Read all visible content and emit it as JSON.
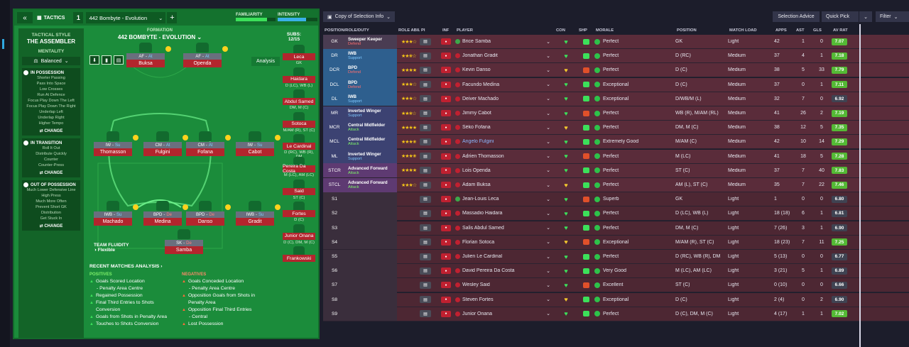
{
  "topbar": {
    "back": "«",
    "tactics": "TACTICS",
    "slot": "1",
    "tactic_name": "442 Bombyte - Evolution",
    "add": "+",
    "familiarity_label": "FAMILIARITY",
    "familiarity": 0.78,
    "intensity_label": "INTENSITY",
    "intensity": 0.72
  },
  "style": {
    "heading": "TACTICAL STYLE",
    "name": "THE ASSEMBLER",
    "mentality_label": "MENTALITY",
    "mentality": "Balanced",
    "change": "CHANGE",
    "possession": {
      "title": "IN POSSESSION",
      "items": [
        "Shorter Passing",
        "Pass Into Space",
        "Low Crosses",
        "Run At Defence",
        "Focus Play Down The Left",
        "Focus Play Down The Right",
        "Underlap Left",
        "Underlap Right",
        "Higher Tempo"
      ]
    },
    "transition": {
      "title": "IN TRANSITION",
      "items": [
        "Roll It Out",
        "Distribute Quickly",
        "Counter",
        "Counter-Press"
      ]
    },
    "oop": {
      "title": "OUT OF POSSESSION",
      "items": [
        "Much Lower Defensive Line",
        "High Press",
        "Much More Often",
        "Prevent Short GK",
        "Distribution",
        "Get Stuck In"
      ]
    }
  },
  "formation": {
    "heading": "FORMATION",
    "name": "442 BOMBYTE - EVOLUTION",
    "subs_label": "SUBS:",
    "subs": "12/15",
    "analysis": "Analysis",
    "fluidity_label": "TEAM FLUIDITY",
    "fluidity": "Flexible"
  },
  "pitch": [
    {
      "role": "AF",
      "duty": "At",
      "name": "Buksa"
    },
    {
      "role": "AF",
      "duty": "At",
      "name": "Openda"
    },
    {
      "role": "IW",
      "duty": "Su",
      "name": "Thomasson"
    },
    {
      "role": "CM",
      "duty": "At",
      "name": "Fulgini"
    },
    {
      "role": "CM",
      "duty": "At",
      "name": "Fofana"
    },
    {
      "role": "IW",
      "duty": "Su",
      "name": "Cabot"
    },
    {
      "role": "IWB",
      "duty": "Su",
      "name": "Machado"
    },
    {
      "role": "BPD",
      "duty": "De",
      "name": "Medina"
    },
    {
      "role": "BPD",
      "duty": "De",
      "name": "Danso"
    },
    {
      "role": "IWB",
      "duty": "Su",
      "name": "Gradit"
    },
    {
      "role": "SK",
      "duty": "De",
      "name": "Samba"
    }
  ],
  "subs": [
    {
      "name": "Leca",
      "pos": "GK"
    },
    {
      "name": "Haidara",
      "pos": "D (LC), WB (L)"
    },
    {
      "name": "Abdul Samed",
      "pos": "DM, M (C)"
    },
    {
      "name": "Sotoca",
      "pos": "M/AM (R), ST (C)"
    },
    {
      "name": "Le Cardinal",
      "pos": "D (RC), WB (R), DM"
    },
    {
      "name": "Pereira Da Costa",
      "pos": "M (LC), AM (LC)"
    },
    {
      "name": "Said",
      "pos": "ST (C)"
    },
    {
      "name": "Fortes",
      "pos": "D (C)"
    },
    {
      "name": "Junior Onana",
      "pos": "D (C), DM, M (C)"
    },
    {
      "name": "Frankowski",
      "pos": ""
    }
  ],
  "analysis": {
    "title": "RECENT MATCHES ANALYSIS ›",
    "positives_label": "POSITIVES",
    "negatives_label": "NEGATIVES",
    "positives": [
      {
        "t": "Goals Scored Location",
        "s": "- Penalty Area Centre"
      },
      {
        "t": "Regained Possession",
        "s": ""
      },
      {
        "t": "Final Third Entries to Shots Conversion",
        "s": ""
      },
      {
        "t": "Goals from Shots in Penalty Area",
        "s": ""
      },
      {
        "t": "Touches to Shots Conversion",
        "s": ""
      }
    ],
    "negatives": [
      {
        "t": "Goals Conceded Location",
        "s": "- Penalty Area Centre"
      },
      {
        "t": "Opposition Goals from Shots in Penalty Area",
        "s": ""
      },
      {
        "t": "Opposition Final Third Entries",
        "s": "- Central"
      },
      {
        "t": "Lost Possession",
        "s": ""
      }
    ]
  },
  "right": {
    "copy": "Copy of Selection Info",
    "selection_advice": "Selection Advice",
    "quick_pick": "Quick Pick",
    "filter": "Filter"
  },
  "columns": [
    "POSITION/ROLE/DUTY",
    "ROLE ABILITY",
    "PI",
    "INF",
    "PLAYER",
    "CON",
    "SHP",
    "MORALE",
    "POSITION",
    "MATCH LOAD",
    "APPS",
    "AST",
    "GLS",
    "AV RAT"
  ],
  "rows": [
    {
      "pos": "GK",
      "role": "Sweeper Keeper",
      "duty": "Defend",
      "stars": 3,
      "player": "Brice Samba",
      "morale": "Perfect",
      "position": "GK",
      "load": "Light",
      "apps": "42",
      "ast": "1",
      "gls": "0",
      "rat": "7.07"
    },
    {
      "pos": "DR",
      "role": "IWB",
      "duty": "Support",
      "stars": 2.5,
      "player": "Jonathan Gradit",
      "morale": "Perfect",
      "position": "D (RC)",
      "load": "Medium",
      "apps": "37",
      "ast": "4",
      "gls": "1",
      "rat": "7.18"
    },
    {
      "pos": "DCR",
      "role": "BPD",
      "duty": "Defend",
      "stars": 4,
      "player": "Kevin Danso",
      "morale": "Perfect",
      "position": "D (C)",
      "load": "Medium",
      "apps": "38",
      "ast": "5",
      "gls": "33",
      "rat": "7.79"
    },
    {
      "pos": "DCL",
      "role": "BPD",
      "duty": "Defend",
      "stars": 3,
      "player": "Facundo Medina",
      "morale": "Exceptional",
      "position": "D (C)",
      "load": "Medium",
      "apps": "37",
      "ast": "0",
      "gls": "1",
      "rat": "7.11"
    },
    {
      "pos": "DL",
      "role": "IWB",
      "duty": "Support",
      "stars": 3,
      "player": "Deiver Machado",
      "morale": "Exceptional",
      "position": "D/WB/M (L)",
      "load": "Medium",
      "apps": "32",
      "ast": "7",
      "gls": "0",
      "rat": "6.92"
    },
    {
      "pos": "MR",
      "role": "Inverted Winger",
      "duty": "Support",
      "stars": 2.5,
      "player": "Jimmy Cabot",
      "morale": "Perfect",
      "position": "WB (R), M/AM (RL)",
      "load": "Medium",
      "apps": "41",
      "ast": "26",
      "gls": "2",
      "rat": "7.19"
    },
    {
      "pos": "MCR",
      "role": "Central Midfielder",
      "duty": "Attack",
      "stars": 4,
      "player": "Sèko Fofana",
      "morale": "Perfect",
      "position": "DM, M (C)",
      "load": "Medium",
      "apps": "38",
      "ast": "12",
      "gls": "5",
      "rat": "7.35"
    },
    {
      "pos": "MCL",
      "role": "Central Midfielder",
      "duty": "Attack",
      "stars": 3.5,
      "player": "Angelo Fulgini",
      "morale": "Extremely Good",
      "position": "M/AM (C)",
      "load": "Medium",
      "apps": "42",
      "ast": "10",
      "gls": "14",
      "rat": "7.29"
    },
    {
      "pos": "ML",
      "role": "Inverted Winger",
      "duty": "Support",
      "stars": 3.5,
      "player": "Adrien Thomasson",
      "morale": "Perfect",
      "position": "M (LC)",
      "load": "Medium",
      "apps": "41",
      "ast": "18",
      "gls": "5",
      "rat": "7.28"
    },
    {
      "pos": "STCR",
      "role": "Advanced Forward",
      "duty": "Attack",
      "stars": 4,
      "player": "Lois Openda",
      "morale": "Perfect",
      "position": "ST (C)",
      "load": "Medium",
      "apps": "37",
      "ast": "7",
      "gls": "40",
      "rat": "7.83"
    },
    {
      "pos": "STCL",
      "role": "Advanced Forward",
      "duty": "Attack",
      "stars": 3,
      "player": "Adam Buksa",
      "morale": "Perfect",
      "position": "AM (L), ST (C)",
      "load": "Medium",
      "apps": "35",
      "ast": "7",
      "gls": "22",
      "rat": "7.46"
    },
    {
      "pos": "S1",
      "role": "",
      "duty": "",
      "stars": 0,
      "player": "Jean-Louis Leca",
      "morale": "Superb",
      "position": "GK",
      "load": "Light",
      "apps": "1",
      "ast": "0",
      "gls": "0",
      "rat": "6.80"
    },
    {
      "pos": "S2",
      "role": "",
      "duty": "",
      "stars": 0,
      "player": "Massadio Haidara",
      "morale": "Perfect",
      "position": "D (LC), WB (L)",
      "load": "Light",
      "apps": "18 (18)",
      "ast": "6",
      "gls": "1",
      "rat": "6.81"
    },
    {
      "pos": "S3",
      "role": "",
      "duty": "",
      "stars": 0,
      "player": "Salis Abdul Samed",
      "morale": "Perfect",
      "position": "DM, M (C)",
      "load": "Light",
      "apps": "7 (26)",
      "ast": "3",
      "gls": "1",
      "rat": "6.90"
    },
    {
      "pos": "S4",
      "role": "",
      "duty": "",
      "stars": 0,
      "player": "Florian Sotoca",
      "morale": "Exceptional",
      "position": "M/AM (R), ST (C)",
      "load": "Light",
      "apps": "18 (23)",
      "ast": "7",
      "gls": "11",
      "rat": "7.25"
    },
    {
      "pos": "S5",
      "role": "",
      "duty": "",
      "stars": 0,
      "player": "Julien Le Cardinal",
      "morale": "Perfect",
      "position": "D (RC), WB (R), DM",
      "load": "Light",
      "apps": "5 (13)",
      "ast": "0",
      "gls": "0",
      "rat": "6.77"
    },
    {
      "pos": "S6",
      "role": "",
      "duty": "",
      "stars": 0,
      "player": "David Pereira Da Costa",
      "morale": "Very Good",
      "position": "M (LC), AM (LC)",
      "load": "Light",
      "apps": "3 (21)",
      "ast": "5",
      "gls": "1",
      "rat": "6.89"
    },
    {
      "pos": "S7",
      "role": "",
      "duty": "",
      "stars": 0,
      "player": "Wesley Said",
      "morale": "Excellent",
      "position": "ST (C)",
      "load": "Light",
      "apps": "0 (10)",
      "ast": "0",
      "gls": "0",
      "rat": "6.66"
    },
    {
      "pos": "S8",
      "role": "",
      "duty": "",
      "stars": 0,
      "player": "Steven Fortes",
      "morale": "Exceptional",
      "position": "D (C)",
      "load": "Light",
      "apps": "2 (4)",
      "ast": "0",
      "gls": "2",
      "rat": "6.90"
    },
    {
      "pos": "S9",
      "role": "",
      "duty": "",
      "stars": 0,
      "player": "Junior Onana",
      "morale": "Perfect",
      "position": "D (C), DM, M (C)",
      "load": "Light",
      "apps": "4 (17)",
      "ast": "1",
      "gls": "1",
      "rat": "7.02"
    }
  ]
}
